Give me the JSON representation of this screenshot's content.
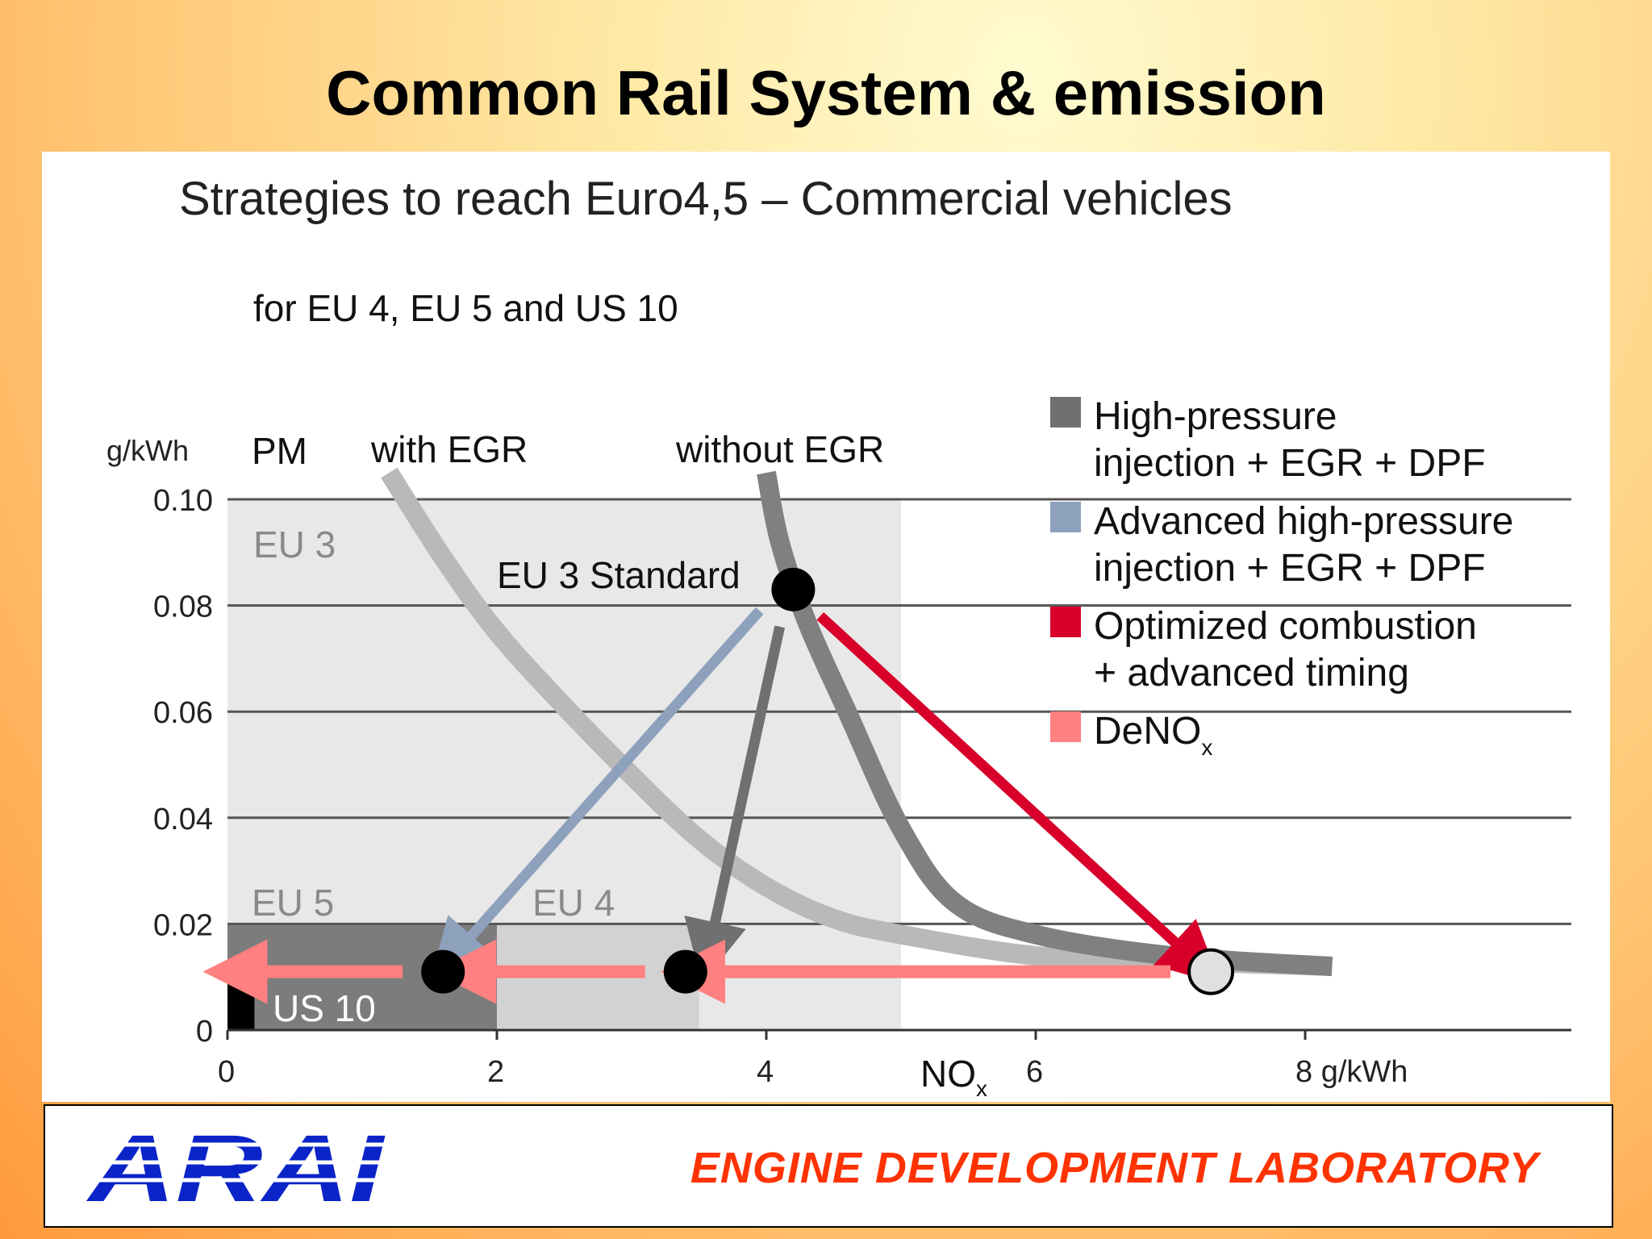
{
  "slide": {
    "title": "Common Rail System & emission"
  },
  "footer": {
    "logo_text": "ARAI",
    "lab_name": "ENGINE DEVELOPMENT LABORATORY"
  },
  "chart_data": {
    "type": "line",
    "title": "Strategies to reach Euro4,5 – Commercial vehicles",
    "subtitle": "for EU 4, EU 5 and US 10",
    "xlabel": "NOx",
    "x_unit_label": "g/kWh",
    "ylabel": "PM",
    "y_unit_label": "g/kWh",
    "xlim": [
      0,
      10
    ],
    "ylim": [
      0,
      0.1
    ],
    "xticks": [
      {
        "value": 0,
        "label": "0"
      },
      {
        "value": 2,
        "label": "2"
      },
      {
        "value": 4,
        "label": "4"
      },
      {
        "value": 6,
        "label": "6"
      },
      {
        "value": 8,
        "label": "8 g/kWh"
      }
    ],
    "yticks": [
      {
        "value": 0,
        "label": "0"
      },
      {
        "value": 0.02,
        "label": "0.02"
      },
      {
        "value": 0.04,
        "label": "0.04"
      },
      {
        "value": 0.06,
        "label": "0.06"
      },
      {
        "value": 0.08,
        "label": "0.08"
      },
      {
        "value": 0.1,
        "label": "0.10"
      }
    ],
    "grid": "horizontal",
    "regions": [
      {
        "label": "EU 3",
        "x": [
          0,
          5
        ],
        "y": [
          0,
          0.1
        ],
        "color": "#e8e8e8"
      },
      {
        "label": "EU 4",
        "x": [
          0,
          3.5
        ],
        "y": [
          0,
          0.02
        ],
        "color": "#d2d2d2"
      },
      {
        "label": "EU 5",
        "x": [
          0,
          2
        ],
        "y": [
          0,
          0.02
        ],
        "color": "#7c7c7c"
      },
      {
        "label": "US 10",
        "x": [
          0,
          0.2
        ],
        "y": [
          0,
          0.013
        ],
        "color": "#000000"
      }
    ],
    "series": [
      {
        "name": "with EGR",
        "color": "#b9b9b9",
        "points": [
          [
            1.2,
            0.105
          ],
          [
            1.6,
            0.089
          ],
          [
            2.0,
            0.075
          ],
          [
            2.5,
            0.061
          ],
          [
            3.0,
            0.048
          ],
          [
            3.5,
            0.036
          ],
          [
            4.0,
            0.027
          ],
          [
            4.5,
            0.021
          ],
          [
            5.0,
            0.018
          ],
          [
            6.0,
            0.014
          ],
          [
            7.0,
            0.013
          ],
          [
            8.2,
            0.012
          ]
        ]
      },
      {
        "name": "without EGR",
        "color": "#808080",
        "points": [
          [
            4.0,
            0.105
          ],
          [
            4.1,
            0.092
          ],
          [
            4.3,
            0.077
          ],
          [
            4.6,
            0.06
          ],
          [
            5.0,
            0.038
          ],
          [
            5.4,
            0.024
          ],
          [
            6.0,
            0.018
          ],
          [
            7.0,
            0.014
          ],
          [
            8.2,
            0.012
          ]
        ]
      }
    ],
    "points": [
      {
        "label": "EU 3 Standard",
        "x": 4.2,
        "y": 0.083,
        "color": "#000000"
      },
      {
        "label": "",
        "x": 1.6,
        "y": 0.011,
        "color": "#000000"
      },
      {
        "label": "",
        "x": 3.4,
        "y": 0.011,
        "color": "#000000"
      },
      {
        "label": "",
        "x": 7.3,
        "y": 0.011,
        "color": "#e0e0e0"
      }
    ],
    "arrows": [
      {
        "strategy": "Advanced high-pressure injection + EGR + DPF",
        "from": [
          3.95,
          0.079
        ],
        "to": [
          1.75,
          0.016
        ],
        "color": "#8da1bc"
      },
      {
        "strategy": "High-pressure injection + EGR + DPF",
        "from": [
          4.1,
          0.076
        ],
        "to": [
          3.6,
          0.018
        ],
        "color": "#707070"
      },
      {
        "strategy": "Optimized combustion + advanced timing",
        "from": [
          4.4,
          0.078
        ],
        "to": [
          7.1,
          0.015
        ],
        "color": "#d8002a"
      },
      {
        "strategy": "DeNOx",
        "from": [
          7.0,
          0.011
        ],
        "to": [
          3.6,
          0.011
        ],
        "color": "#ff8080"
      },
      {
        "strategy": "DeNOx",
        "from": [
          3.1,
          0.011
        ],
        "to": [
          1.9,
          0.011
        ],
        "color": "#ff8080"
      },
      {
        "strategy": "DeNOx",
        "from": [
          1.3,
          0.011
        ],
        "to": [
          0.2,
          0.011
        ],
        "color": "#ff8080"
      }
    ],
    "legend": {
      "placement": "top-right",
      "entries": [
        {
          "label_line1": "High-pressure",
          "label_line2": "injection + EGR + DPF",
          "color": "#707070"
        },
        {
          "label_line1": "Advanced high-pressure",
          "label_line2": "injection + EGR + DPF",
          "color": "#8da1bc"
        },
        {
          "label_line1": "Optimized combustion",
          "label_line2": "+ advanced timing",
          "color": "#d8002a"
        },
        {
          "label_line1": "DeNO",
          "label_sub": "x",
          "label_line2": "",
          "color": "#ff8080"
        }
      ]
    }
  }
}
